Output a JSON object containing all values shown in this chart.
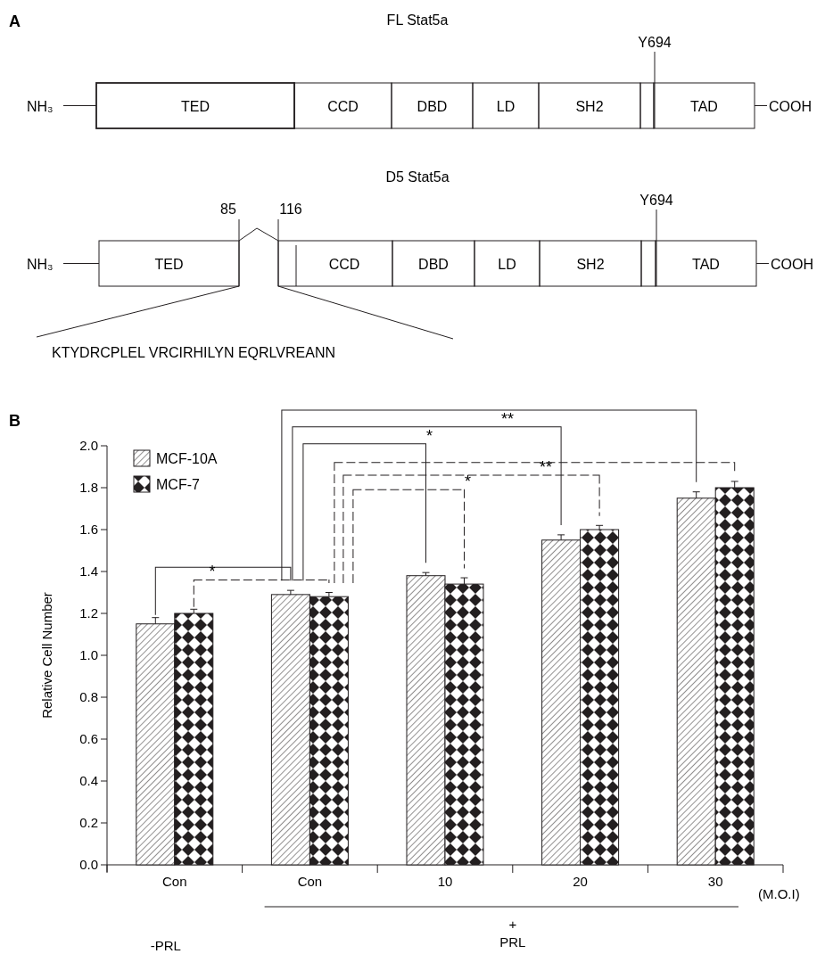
{
  "chart_data": [
    {
      "type": "other",
      "title": "A",
      "annotations": [
        "FL Stat5a",
        "NH₃",
        "TED",
        "CCD",
        "DBD",
        "LD",
        "SH2",
        "TAD",
        "COOH",
        "Y694",
        "D5 Stat5a",
        "NH₃",
        "TED",
        "CCD",
        "DBD",
        "LD",
        "SH2",
        "TAD",
        "COOH",
        "Y694",
        "85",
        "116",
        "KTYDRCPLEL VRCIRHILYN EQRLVREANN"
      ]
    },
    {
      "type": "bar",
      "title": "B",
      "categories": [
        "Con",
        "Con",
        "10",
        "20",
        "30"
      ],
      "xlabel": "(M.O.I)",
      "ylabel": "Relative Cell Number",
      "ylim": [
        0,
        2.0
      ],
      "yticks": [
        {
          "value": 0,
          "label": "0.0"
        },
        0.2,
        0.4,
        0.6,
        0.8,
        {
          "value": 1,
          "label": "1.0"
        },
        1.2,
        1.4,
        1.6,
        1.8,
        {
          "value": 2,
          "label": "2.0"
        }
      ],
      "legend": "top left",
      "series": [
        {
          "name": "MCF-10A",
          "color": "#231f20",
          "values": [
            1.15,
            1.29,
            1.38,
            1.55,
            1.75
          ],
          "errors": [
            0.03,
            0.02,
            0.015,
            0.025,
            0.03
          ]
        },
        {
          "name": "MCF-7",
          "color": "#231f20",
          "values": [
            1.2,
            1.28,
            1.34,
            1.6,
            1.8
          ],
          "errors": [
            0.02,
            0.02,
            0.03,
            0.02,
            0.03
          ]
        }
      ],
      "annotations": [
        "*",
        "**",
        "*",
        "**",
        "*",
        "-PRL",
        "+",
        "PRL"
      ]
    }
  ]
}
